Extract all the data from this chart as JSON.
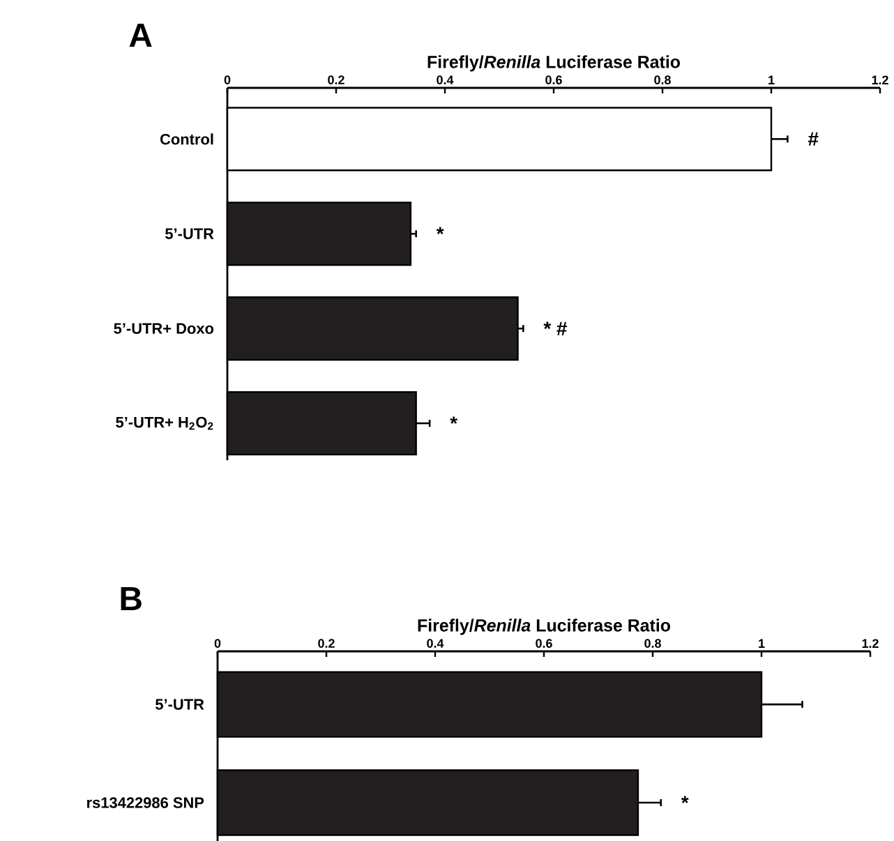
{
  "chart_data": [
    {
      "type": "bar",
      "orientation": "horizontal",
      "title": "A",
      "xlabel": "Firefly/*Renilla* Luciferase Ratio",
      "categories": [
        "Control",
        "5’-UTR",
        "5’-UTR+ Doxo",
        "5’-UTR+ H$_{2}$O$_{2}$"
      ],
      "values": [
        1.0,
        0.337,
        0.534,
        0.347
      ],
      "errors": [
        0.03,
        0.01,
        0.01,
        0.025
      ],
      "colors": [
        "#ffffff",
        "#231f20",
        "#231f20",
        "#231f20"
      ],
      "xlim": [
        0,
        1.2
      ],
      "xticks": [
        0,
        0.2,
        0.4,
        0.6,
        0.8,
        1,
        1.2
      ],
      "annotations": [
        {
          "text": "#",
          "x": 1.03,
          "y": "Control"
        },
        {
          "text": "*",
          "x": 0.347,
          "y": "5’-UTR"
        },
        {
          "text": "* #",
          "x": 0.544,
          "y": "5’-UTR+ Doxo"
        },
        {
          "text": "*",
          "x": 0.372,
          "y": "5’-UTR+ H$_{2}$O$_{2}$"
        }
      ]
    },
    {
      "type": "bar",
      "orientation": "horizontal",
      "title": "B",
      "xlabel": "Firefly/*Renilla* Luciferase Ratio",
      "categories": [
        "5’-UTR",
        "rs13422986 SNP"
      ],
      "values": [
        1.0,
        0.773
      ],
      "errors": [
        0.075,
        0.042
      ],
      "colors": [
        "#231f20",
        "#231f20"
      ],
      "xlim": [
        0,
        1.2
      ],
      "xticks": [
        0,
        0.2,
        0.4,
        0.6,
        0.8,
        1,
        1.2
      ],
      "annotations": [
        {
          "text": "*",
          "x": 0.815,
          "y": "rs13422986 SNP"
        }
      ]
    }
  ]
}
